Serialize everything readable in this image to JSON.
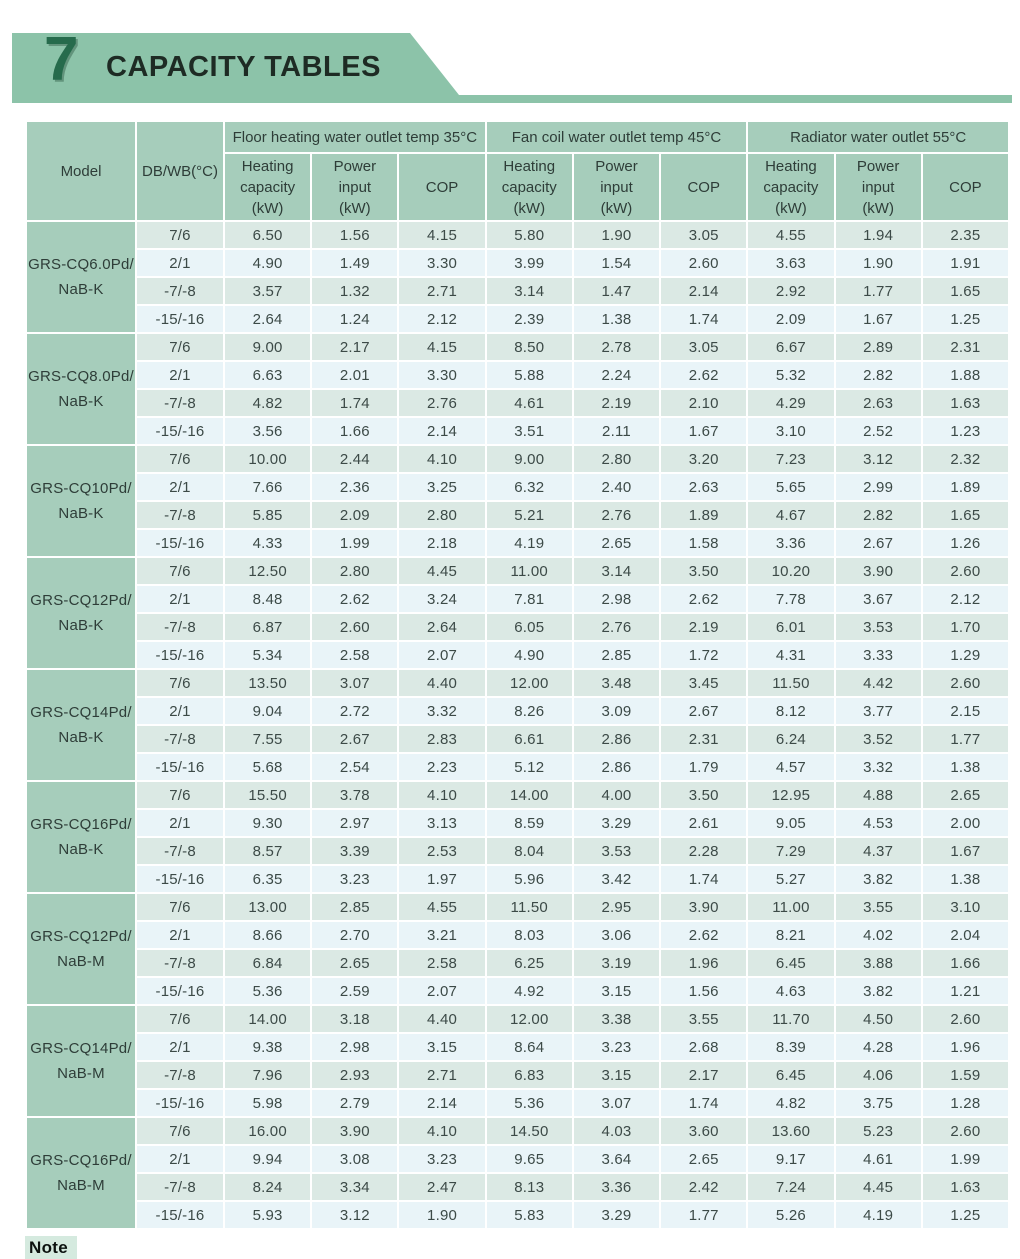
{
  "page": {
    "section_number": "7",
    "title": "CAPACITY TABLES",
    "note_label": "Note",
    "colors": {
      "banner_green": "#8cc3a9",
      "header_green": "#a6cdbb",
      "row_green": "#dbe9e4",
      "row_blue": "#e9f4f8",
      "section_number_green": "#266b4c"
    }
  },
  "table": {
    "col_model": "Model",
    "col_dbwb": "DB/WB(°C)",
    "group_headers": [
      "Floor heating water outlet temp 35°C",
      "Fan coil water outlet temp 45°C",
      "Radiator water outlet 55°C"
    ],
    "sub_headers": [
      "Heating\ncapacity\n(kW)",
      "Power\ninput\n(kW)",
      "COP"
    ],
    "models": [
      {
        "model": "GRS-CQ6.0Pd/\nNaB-K",
        "rows": [
          {
            "db_wb": "7/6",
            "values": [
              "6.50",
              "1.56",
              "4.15",
              "5.80",
              "1.90",
              "3.05",
              "4.55",
              "1.94",
              "2.35"
            ]
          },
          {
            "db_wb": "2/1",
            "values": [
              "4.90",
              "1.49",
              "3.30",
              "3.99",
              "1.54",
              "2.60",
              "3.63",
              "1.90",
              "1.91"
            ]
          },
          {
            "db_wb": "-7/-8",
            "values": [
              "3.57",
              "1.32",
              "2.71",
              "3.14",
              "1.47",
              "2.14",
              "2.92",
              "1.77",
              "1.65"
            ]
          },
          {
            "db_wb": "-15/-16",
            "values": [
              "2.64",
              "1.24",
              "2.12",
              "2.39",
              "1.38",
              "1.74",
              "2.09",
              "1.67",
              "1.25"
            ]
          }
        ]
      },
      {
        "model": "GRS-CQ8.0Pd/\nNaB-K",
        "rows": [
          {
            "db_wb": "7/6",
            "values": [
              "9.00",
              "2.17",
              "4.15",
              "8.50",
              "2.78",
              "3.05",
              "6.67",
              "2.89",
              "2.31"
            ]
          },
          {
            "db_wb": "2/1",
            "values": [
              "6.63",
              "2.01",
              "3.30",
              "5.88",
              "2.24",
              "2.62",
              "5.32",
              "2.82",
              "1.88"
            ]
          },
          {
            "db_wb": "-7/-8",
            "values": [
              "4.82",
              "1.74",
              "2.76",
              "4.61",
              "2.19",
              "2.10",
              "4.29",
              "2.63",
              "1.63"
            ]
          },
          {
            "db_wb": "-15/-16",
            "values": [
              "3.56",
              "1.66",
              "2.14",
              "3.51",
              "2.11",
              "1.67",
              "3.10",
              "2.52",
              "1.23"
            ]
          }
        ]
      },
      {
        "model": "GRS-CQ10Pd/\nNaB-K",
        "rows": [
          {
            "db_wb": "7/6",
            "values": [
              "10.00",
              "2.44",
              "4.10",
              "9.00",
              "2.80",
              "3.20",
              "7.23",
              "3.12",
              "2.32"
            ]
          },
          {
            "db_wb": "2/1",
            "values": [
              "7.66",
              "2.36",
              "3.25",
              "6.32",
              "2.40",
              "2.63",
              "5.65",
              "2.99",
              "1.89"
            ]
          },
          {
            "db_wb": "-7/-8",
            "values": [
              "5.85",
              "2.09",
              "2.80",
              "5.21",
              "2.76",
              "1.89",
              "4.67",
              "2.82",
              "1.65"
            ]
          },
          {
            "db_wb": "-15/-16",
            "values": [
              "4.33",
              "1.99",
              "2.18",
              "4.19",
              "2.65",
              "1.58",
              "3.36",
              "2.67",
              "1.26"
            ]
          }
        ]
      },
      {
        "model": "GRS-CQ12Pd/\nNaB-K",
        "rows": [
          {
            "db_wb": "7/6",
            "values": [
              "12.50",
              "2.80",
              "4.45",
              "11.00",
              "3.14",
              "3.50",
              "10.20",
              "3.90",
              "2.60"
            ]
          },
          {
            "db_wb": "2/1",
            "values": [
              "8.48",
              "2.62",
              "3.24",
              "7.81",
              "2.98",
              "2.62",
              "7.78",
              "3.67",
              "2.12"
            ]
          },
          {
            "db_wb": "-7/-8",
            "values": [
              "6.87",
              "2.60",
              "2.64",
              "6.05",
              "2.76",
              "2.19",
              "6.01",
              "3.53",
              "1.70"
            ]
          },
          {
            "db_wb": "-15/-16",
            "values": [
              "5.34",
              "2.58",
              "2.07",
              "4.90",
              "2.85",
              "1.72",
              "4.31",
              "3.33",
              "1.29"
            ]
          }
        ]
      },
      {
        "model": "GRS-CQ14Pd/\nNaB-K",
        "rows": [
          {
            "db_wb": "7/6",
            "values": [
              "13.50",
              "3.07",
              "4.40",
              "12.00",
              "3.48",
              "3.45",
              "11.50",
              "4.42",
              "2.60"
            ]
          },
          {
            "db_wb": "2/1",
            "values": [
              "9.04",
              "2.72",
              "3.32",
              "8.26",
              "3.09",
              "2.67",
              "8.12",
              "3.77",
              "2.15"
            ]
          },
          {
            "db_wb": "-7/-8",
            "values": [
              "7.55",
              "2.67",
              "2.83",
              "6.61",
              "2.86",
              "2.31",
              "6.24",
              "3.52",
              "1.77"
            ]
          },
          {
            "db_wb": "-15/-16",
            "values": [
              "5.68",
              "2.54",
              "2.23",
              "5.12",
              "2.86",
              "1.79",
              "4.57",
              "3.32",
              "1.38"
            ]
          }
        ]
      },
      {
        "model": "GRS-CQ16Pd/\nNaB-K",
        "rows": [
          {
            "db_wb": "7/6",
            "values": [
              "15.50",
              "3.78",
              "4.10",
              "14.00",
              "4.00",
              "3.50",
              "12.95",
              "4.88",
              "2.65"
            ]
          },
          {
            "db_wb": "2/1",
            "values": [
              "9.30",
              "2.97",
              "3.13",
              "8.59",
              "3.29",
              "2.61",
              "9.05",
              "4.53",
              "2.00"
            ]
          },
          {
            "db_wb": "-7/-8",
            "values": [
              "8.57",
              "3.39",
              "2.53",
              "8.04",
              "3.53",
              "2.28",
              "7.29",
              "4.37",
              "1.67"
            ]
          },
          {
            "db_wb": "-15/-16",
            "values": [
              "6.35",
              "3.23",
              "1.97",
              "5.96",
              "3.42",
              "1.74",
              "5.27",
              "3.82",
              "1.38"
            ]
          }
        ]
      },
      {
        "model": "GRS-CQ12Pd/\nNaB-M",
        "rows": [
          {
            "db_wb": "7/6",
            "values": [
              "13.00",
              "2.85",
              "4.55",
              "11.50",
              "2.95",
              "3.90",
              "11.00",
              "3.55",
              "3.10"
            ]
          },
          {
            "db_wb": "2/1",
            "values": [
              "8.66",
              "2.70",
              "3.21",
              "8.03",
              "3.06",
              "2.62",
              "8.21",
              "4.02",
              "2.04"
            ]
          },
          {
            "db_wb": "-7/-8",
            "values": [
              "6.84",
              "2.65",
              "2.58",
              "6.25",
              "3.19",
              "1.96",
              "6.45",
              "3.88",
              "1.66"
            ]
          },
          {
            "db_wb": "-15/-16",
            "values": [
              "5.36",
              "2.59",
              "2.07",
              "4.92",
              "3.15",
              "1.56",
              "4.63",
              "3.82",
              "1.21"
            ]
          }
        ]
      },
      {
        "model": "GRS-CQ14Pd/\nNaB-M",
        "rows": [
          {
            "db_wb": "7/6",
            "values": [
              "14.00",
              "3.18",
              "4.40",
              "12.00",
              "3.38",
              "3.55",
              "11.70",
              "4.50",
              "2.60"
            ]
          },
          {
            "db_wb": "2/1",
            "values": [
              "9.38",
              "2.98",
              "3.15",
              "8.64",
              "3.23",
              "2.68",
              "8.39",
              "4.28",
              "1.96"
            ]
          },
          {
            "db_wb": "-7/-8",
            "values": [
              "7.96",
              "2.93",
              "2.71",
              "6.83",
              "3.15",
              "2.17",
              "6.45",
              "4.06",
              "1.59"
            ]
          },
          {
            "db_wb": "-15/-16",
            "values": [
              "5.98",
              "2.79",
              "2.14",
              "5.36",
              "3.07",
              "1.74",
              "4.82",
              "3.75",
              "1.28"
            ]
          }
        ]
      },
      {
        "model": "GRS-CQ16Pd/\nNaB-M",
        "rows": [
          {
            "db_wb": "7/6",
            "values": [
              "16.00",
              "3.90",
              "4.10",
              "14.50",
              "4.03",
              "3.60",
              "13.60",
              "5.23",
              "2.60"
            ]
          },
          {
            "db_wb": "2/1",
            "values": [
              "9.94",
              "3.08",
              "3.23",
              "9.65",
              "3.64",
              "2.65",
              "9.17",
              "4.61",
              "1.99"
            ]
          },
          {
            "db_wb": "-7/-8",
            "values": [
              "8.24",
              "3.34",
              "2.47",
              "8.13",
              "3.36",
              "2.42",
              "7.24",
              "4.45",
              "1.63"
            ]
          },
          {
            "db_wb": "-15/-16",
            "values": [
              "5.93",
              "3.12",
              "1.90",
              "5.83",
              "3.29",
              "1.77",
              "5.26",
              "4.19",
              "1.25"
            ]
          }
        ]
      }
    ]
  }
}
